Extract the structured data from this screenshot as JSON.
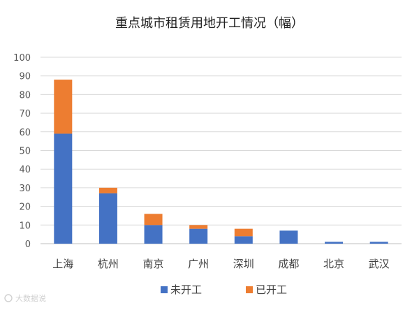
{
  "chart_data": {
    "type": "bar",
    "stacked": true,
    "title": "重点城市租赁用地开工情况（幅）",
    "categories": [
      "上海",
      "杭州",
      "南京",
      "广州",
      "深圳",
      "成都",
      "北京",
      "武汉"
    ],
    "series": [
      {
        "name": "未开工",
        "color": "#4472C4",
        "values": [
          59,
          27,
          10,
          8,
          4,
          7,
          1,
          1
        ]
      },
      {
        "name": "已开工",
        "color": "#ED7D31",
        "values": [
          29,
          3,
          6,
          2,
          4,
          0,
          0,
          0
        ]
      }
    ],
    "ylim": [
      0,
      100
    ],
    "yticks": [
      0,
      10,
      20,
      30,
      40,
      50,
      60,
      70,
      80,
      90,
      100
    ],
    "grid": true,
    "legend_position": "bottom"
  },
  "watermark": "大数据说"
}
